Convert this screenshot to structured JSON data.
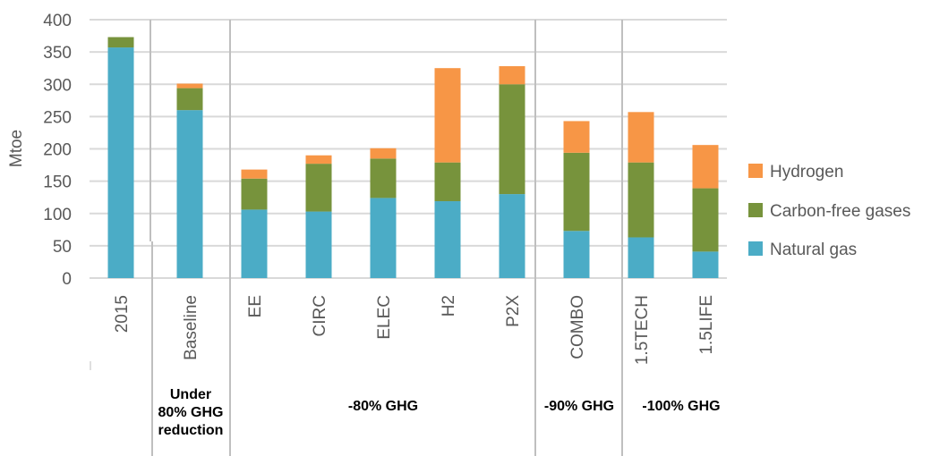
{
  "chart_data": {
    "type": "bar",
    "stacked": true,
    "ylabel": "Mtoe",
    "ylim": [
      0,
      400
    ],
    "yticks": [
      0,
      50,
      100,
      150,
      200,
      250,
      300,
      350,
      400
    ],
    "grid": true,
    "legend_position": "right",
    "categories": [
      "2015",
      "Baseline",
      "EE",
      "CIRC",
      "ELEC",
      "H2",
      "P2X",
      "COMBO",
      "1.5TECH",
      "1.5LIFE"
    ],
    "series": [
      {
        "name": "Natural gas",
        "color": "#4bacc6",
        "values": [
          357,
          260,
          106,
          103,
          124,
          119,
          130,
          73,
          63,
          41
        ]
      },
      {
        "name": "Carbon-free gases",
        "color": "#77933c",
        "values": [
          16,
          34,
          48,
          74,
          61,
          60,
          170,
          121,
          116,
          98
        ]
      },
      {
        "name": "Hydrogen",
        "color": "#f79646",
        "values": [
          0,
          7,
          14,
          13,
          16,
          146,
          28,
          49,
          78,
          67
        ]
      }
    ],
    "groups": [
      {
        "label": [
          "Under",
          "80% GHG",
          "reduction"
        ],
        "categories": [
          "Baseline"
        ]
      },
      {
        "label": [
          "-80% GHG"
        ],
        "categories": [
          "EE",
          "CIRC",
          "ELEC",
          "H2",
          "P2X"
        ]
      },
      {
        "label": [
          "-90% GHG"
        ],
        "categories": [
          "COMBO"
        ]
      },
      {
        "label": [
          "-100% GHG"
        ],
        "categories": [
          "1.5TECH",
          "1.5LIFE"
        ]
      }
    ]
  }
}
